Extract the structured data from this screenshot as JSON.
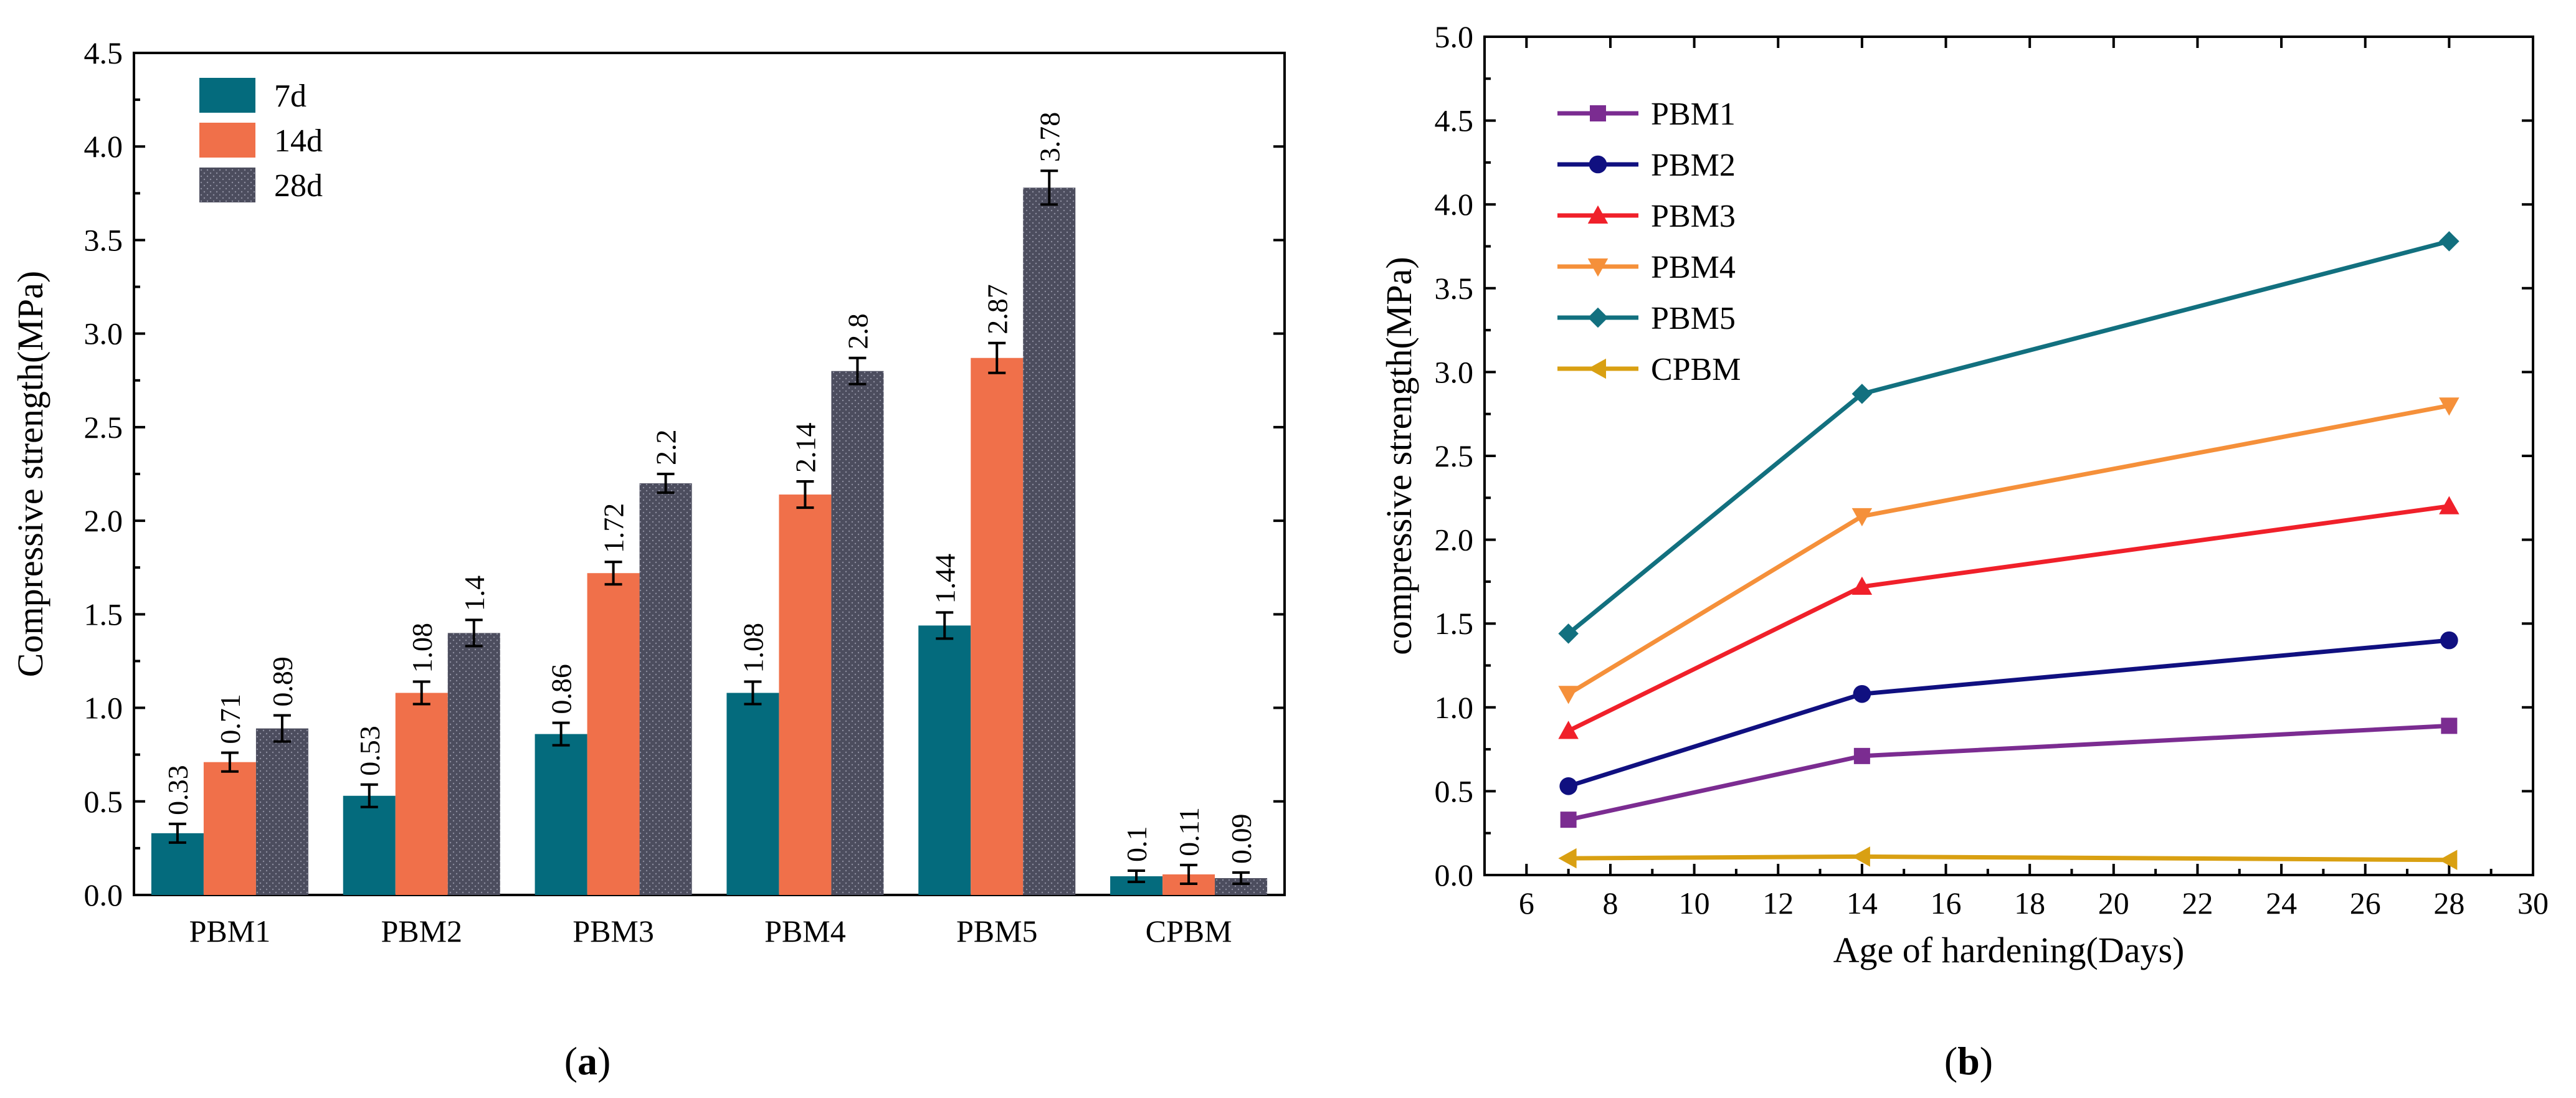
{
  "chart_data": [
    {
      "type": "bar",
      "panel": "a",
      "panel_label_prefix": "(",
      "panel_label_letter": "a",
      "panel_label_suffix": ")",
      "categories": [
        "PBM1",
        "PBM2",
        "PBM3",
        "PBM4",
        "PBM5",
        "CPBM"
      ],
      "series": [
        {
          "name": "7d",
          "color": "#046B7D",
          "pattern": "solid",
          "values": [
            0.33,
            0.53,
            0.86,
            1.08,
            1.44,
            0.1
          ],
          "labels": [
            "0.33",
            "0.53",
            "0.86",
            "1.08",
            "1.44",
            "0.1"
          ],
          "errors": [
            0.05,
            0.06,
            0.06,
            0.06,
            0.07,
            0.03
          ]
        },
        {
          "name": "14d",
          "color": "#F0704A",
          "pattern": "solid",
          "values": [
            0.71,
            1.08,
            1.72,
            2.14,
            2.87,
            0.11
          ],
          "labels": [
            "0.71",
            "1.08",
            "1.72",
            "2.14",
            "2.87",
            "0.11"
          ],
          "errors": [
            0.05,
            0.06,
            0.06,
            0.07,
            0.08,
            0.05
          ]
        },
        {
          "name": "28d",
          "color": "#4C4D5E",
          "pattern": "dotted",
          "values": [
            0.89,
            1.4,
            2.2,
            2.8,
            3.78,
            0.09
          ],
          "labels": [
            "0.89",
            "1.4",
            "2.2",
            "2.8",
            "3.78",
            "0.09"
          ],
          "errors": [
            0.07,
            0.07,
            0.05,
            0.07,
            0.09,
            0.03
          ]
        }
      ],
      "title": "",
      "xlabel": "",
      "ylabel": "Compressive strength(MPa)",
      "ylim": [
        0,
        4.5
      ],
      "yticks": [
        "0.0",
        "0.5",
        "1.0",
        "1.5",
        "2.0",
        "2.5",
        "3.0",
        "3.5",
        "4.0",
        "4.5"
      ],
      "legend": "top-left",
      "grid": false
    },
    {
      "type": "line",
      "panel": "b",
      "panel_label_prefix": "(",
      "panel_label_letter": "b",
      "panel_label_suffix": ")",
      "x": [
        7,
        14,
        28
      ],
      "series": [
        {
          "name": "PBM1",
          "color": "#7B2C91",
          "marker": "square",
          "values": [
            0.33,
            0.71,
            0.89
          ]
        },
        {
          "name": "PBM2",
          "color": "#101080",
          "marker": "circle",
          "values": [
            0.53,
            1.08,
            1.4
          ]
        },
        {
          "name": "PBM3",
          "color": "#F0202A",
          "marker": "triangle-up",
          "values": [
            0.86,
            1.72,
            2.2
          ]
        },
        {
          "name": "PBM4",
          "color": "#F5903A",
          "marker": "triangle-down",
          "values": [
            1.08,
            2.14,
            2.8
          ]
        },
        {
          "name": "PBM5",
          "color": "#12707F",
          "marker": "diamond",
          "values": [
            1.44,
            2.87,
            3.78
          ]
        },
        {
          "name": "CPBM",
          "color": "#D9A012",
          "marker": "triangle-left",
          "values": [
            0.1,
            0.11,
            0.09
          ]
        }
      ],
      "title": "",
      "xlabel": "Age of hardening(Days)",
      "ylabel": "compressive strength(MPa)",
      "xlim": [
        5,
        30
      ],
      "ylim": [
        0,
        5
      ],
      "xticks": [
        "6",
        "8",
        "10",
        "12",
        "14",
        "16",
        "18",
        "20",
        "22",
        "24",
        "26",
        "28",
        "30"
      ],
      "yticks": [
        "0.0",
        "0.5",
        "1.0",
        "1.5",
        "2.0",
        "2.5",
        "3.0",
        "3.5",
        "4.0",
        "4.5",
        "5.0"
      ],
      "legend": "top-left",
      "grid": false
    }
  ]
}
